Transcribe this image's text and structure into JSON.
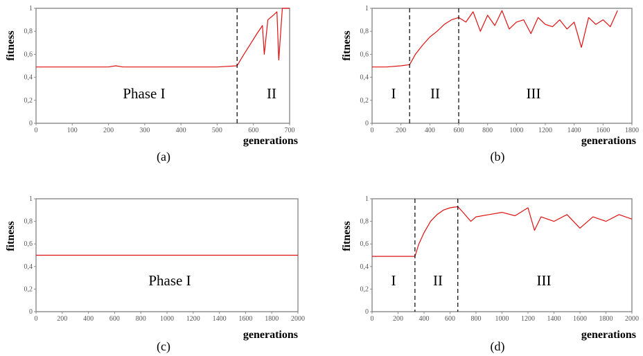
{
  "colors": {
    "series": "#e01010",
    "frame": "#888888",
    "divider": "#000000"
  },
  "chart_data": [
    {
      "type": "line",
      "caption": "(a)",
      "xlabel": "generations",
      "ylabel": "fitness",
      "xlim": [
        0,
        700
      ],
      "ylim": [
        0,
        1
      ],
      "xticks": [
        "0",
        "100",
        "200",
        "300",
        "400",
        "500",
        "600",
        "700"
      ],
      "yticks": [
        "0",
        "0,2",
        "0,4",
        "0,6",
        "0,8",
        "1"
      ],
      "grid": false,
      "phases": [
        "Phase I",
        "II"
      ],
      "phase_boundaries": [
        555
      ],
      "series": [
        {
          "x": [
            0,
            100,
            200,
            220,
            240,
            300,
            400,
            500,
            555,
            570,
            590,
            610,
            625,
            630,
            640,
            655,
            665,
            670,
            680,
            690,
            700
          ],
          "y": [
            0.49,
            0.49,
            0.49,
            0.5,
            0.49,
            0.49,
            0.49,
            0.49,
            0.5,
            0.58,
            0.68,
            0.78,
            0.85,
            0.6,
            0.9,
            0.94,
            0.97,
            0.55,
            1.0,
            1.0,
            1.0
          ]
        }
      ]
    },
    {
      "type": "line",
      "caption": "(b)",
      "xlabel": "generations",
      "ylabel": "fitness",
      "xlim": [
        0,
        1800
      ],
      "ylim": [
        0,
        1
      ],
      "xticks": [
        "0",
        "200",
        "400",
        "600",
        "800",
        "1000",
        "1200",
        "1400",
        "1600",
        "1800"
      ],
      "yticks": [
        "0",
        "0,2",
        "0,4",
        "0,6",
        "0,8",
        "1"
      ],
      "grid": false,
      "phases": [
        "I",
        "II",
        "III"
      ],
      "phase_boundaries": [
        260,
        600
      ],
      "series": [
        {
          "x": [
            0,
            100,
            200,
            260,
            300,
            350,
            400,
            450,
            500,
            550,
            600,
            650,
            700,
            750,
            800,
            850,
            900,
            950,
            1000,
            1050,
            1100,
            1150,
            1200,
            1250,
            1300,
            1350,
            1400,
            1450,
            1500,
            1550,
            1600,
            1650,
            1700
          ],
          "y": [
            0.49,
            0.49,
            0.5,
            0.51,
            0.6,
            0.68,
            0.75,
            0.8,
            0.86,
            0.9,
            0.92,
            0.88,
            0.97,
            0.8,
            0.94,
            0.85,
            0.98,
            0.82,
            0.88,
            0.9,
            0.78,
            0.92,
            0.86,
            0.84,
            0.9,
            0.82,
            0.88,
            0.66,
            0.92,
            0.86,
            0.9,
            0.84,
            0.98
          ]
        }
      ]
    },
    {
      "type": "line",
      "caption": "(c)",
      "xlabel": "generations",
      "ylabel": "fitness",
      "xlim": [
        0,
        2000
      ],
      "ylim": [
        0,
        1
      ],
      "xticks": [
        "0",
        "200",
        "400",
        "600",
        "800",
        "1000",
        "1200",
        "1400",
        "1600",
        "1800",
        "2000"
      ],
      "yticks": [
        "0",
        "0,2",
        "0,4",
        "0,6",
        "0,8",
        "1"
      ],
      "grid": false,
      "phases": [
        "Phase I"
      ],
      "phase_boundaries": [],
      "series": [
        {
          "x": [
            0,
            200,
            400,
            600,
            800,
            1000,
            1200,
            1400,
            1600,
            1800,
            2000
          ],
          "y": [
            0.5,
            0.5,
            0.5,
            0.5,
            0.5,
            0.5,
            0.5,
            0.5,
            0.5,
            0.5,
            0.5
          ]
        }
      ]
    },
    {
      "type": "line",
      "caption": "(d)",
      "xlabel": "generations",
      "ylabel": "fitness",
      "xlim": [
        0,
        2000
      ],
      "ylim": [
        0,
        1
      ],
      "xticks": [
        "0",
        "200",
        "400",
        "600",
        "800",
        "1000",
        "1200",
        "1400",
        "1600",
        "1800",
        "2000"
      ],
      "yticks": [
        "0",
        "0,2",
        "0,4",
        "0,6",
        "0,8",
        "1"
      ],
      "grid": false,
      "phases": [
        "I",
        "II",
        "III"
      ],
      "phase_boundaries": [
        330,
        660
      ],
      "series": [
        {
          "x": [
            0,
            100,
            200,
            330,
            360,
            400,
            450,
            500,
            550,
            600,
            660,
            700,
            760,
            800,
            900,
            1000,
            1100,
            1200,
            1250,
            1300,
            1400,
            1500,
            1600,
            1700,
            1800,
            1900,
            2000
          ],
          "y": [
            0.49,
            0.49,
            0.49,
            0.49,
            0.6,
            0.7,
            0.8,
            0.86,
            0.9,
            0.92,
            0.93,
            0.88,
            0.8,
            0.84,
            0.86,
            0.88,
            0.85,
            0.92,
            0.72,
            0.84,
            0.8,
            0.86,
            0.74,
            0.84,
            0.8,
            0.86,
            0.82
          ]
        }
      ]
    }
  ]
}
